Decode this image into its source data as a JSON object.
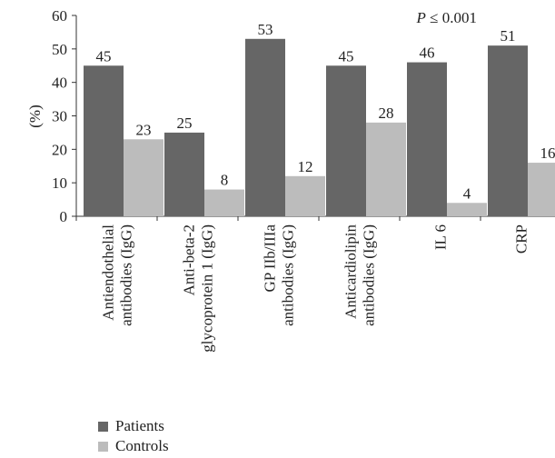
{
  "chart_data": {
    "type": "bar",
    "ylabel": "(%)",
    "ylim": [
      0,
      60
    ],
    "yticks": [
      0,
      10,
      20,
      30,
      40,
      50,
      60
    ],
    "annotation": {
      "var": "P",
      "text": " ≤ 0.001"
    },
    "categories": [
      [
        "Antiendothelial",
        "antibodies (IgG)"
      ],
      [
        "Anti-beta-2",
        "glycoprotein 1 (IgG)"
      ],
      [
        "GP IIb/IIIa",
        "antibodies (IgG)"
      ],
      [
        "Anticardiolipin",
        "antibodies (IgG)"
      ],
      [
        "IL 6"
      ],
      [
        "CRP"
      ]
    ],
    "series": [
      {
        "name": "Patients",
        "color": "#666666",
        "values": [
          45,
          25,
          53,
          45,
          46,
          51
        ]
      },
      {
        "name": "Controls",
        "color": "#bcbcbc",
        "values": [
          23,
          8,
          12,
          28,
          4,
          16
        ]
      }
    ],
    "legend_position": "bottom-left",
    "grid": false
  }
}
